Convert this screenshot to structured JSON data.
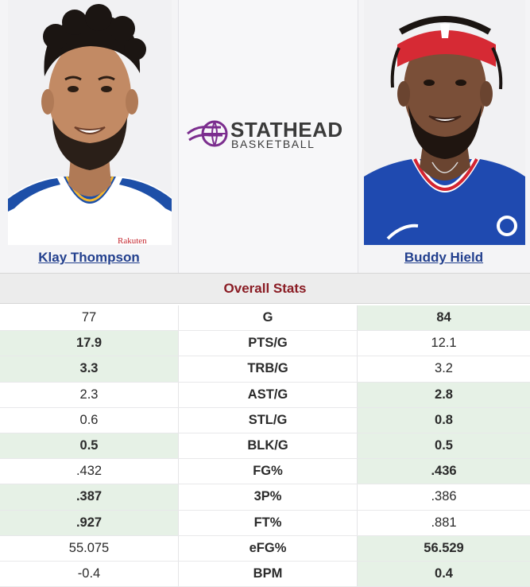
{
  "players": {
    "left": {
      "name": "Klay Thompson",
      "jersey_text": "Rakuten"
    },
    "right": {
      "name": "Buddy Hield"
    }
  },
  "logo": {
    "line1": "STATHEAD",
    "line2": "BASKETBALL"
  },
  "section_title": "Overall Stats",
  "colors": {
    "accent": "#8a1c24",
    "link": "#23408e",
    "win_bg": "#e6f1e6",
    "logo_purple": "#7b2d8e"
  },
  "stats": [
    {
      "label": "G",
      "left": "77",
      "right": "84",
      "winner": "right"
    },
    {
      "label": "PTS/G",
      "left": "17.9",
      "right": "12.1",
      "winner": "left"
    },
    {
      "label": "TRB/G",
      "left": "3.3",
      "right": "3.2",
      "winner": "left"
    },
    {
      "label": "AST/G",
      "left": "2.3",
      "right": "2.8",
      "winner": "right"
    },
    {
      "label": "STL/G",
      "left": "0.6",
      "right": "0.8",
      "winner": "right"
    },
    {
      "label": "BLK/G",
      "left": "0.5",
      "right": "0.5",
      "winner": "both"
    },
    {
      "label": "FG%",
      "left": ".432",
      "right": ".436",
      "winner": "right"
    },
    {
      "label": "3P%",
      "left": ".387",
      "right": ".386",
      "winner": "left"
    },
    {
      "label": "FT%",
      "left": ".927",
      "right": ".881",
      "winner": "left"
    },
    {
      "label": "eFG%",
      "left": "55.075",
      "right": "56.529",
      "winner": "right"
    },
    {
      "label": "BPM",
      "left": "-0.4",
      "right": "0.4",
      "winner": "right"
    }
  ]
}
